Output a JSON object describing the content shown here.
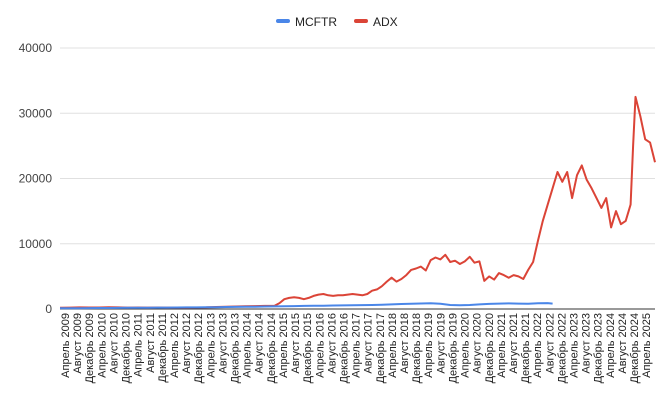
{
  "chart_data": {
    "type": "line",
    "title": "",
    "xlabel": "",
    "ylabel": "",
    "ylim": [
      0,
      40000
    ],
    "yticks": [
      0,
      10000,
      20000,
      30000,
      40000
    ],
    "grid": true,
    "legend_position": "top-center",
    "x_tick_labels": [
      "Апрель 2009",
      "Август 2009",
      "Декабрь 2009",
      "Апрель 2010",
      "Август 2010",
      "Декабрь 2010",
      "Апрель 2011",
      "Август 2011",
      "Декабрь 2011",
      "Апрель 2012",
      "Август 2012",
      "Декабрь 2012",
      "Апрель 2013",
      "Август 2013",
      "Декабрь 2013",
      "Апрель 2014",
      "Август 2014",
      "Декабрь 2014",
      "Апрель 2015",
      "Август 2015",
      "Декабрь 2015",
      "Апрель 2016",
      "Август 2016",
      "Декабрь 2016",
      "Апрель 2017",
      "Август 2017",
      "Декабрь 2017",
      "Апрель 2018",
      "Август 2018",
      "Декабрь 2018",
      "Апрель 2019",
      "Август 2019",
      "Декабрь 2019",
      "Апрель 2020",
      "Август 2020",
      "Декабрь 2020",
      "Апрель 2021",
      "Август 2021",
      "Декабрь 2021",
      "Апрель 2022",
      "Август 2022",
      "Декабрь 2022",
      "Апрель 2023",
      "Август 2023",
      "Декабрь 2023",
      "Апрель 2024",
      "Август 2024",
      "Декабрь 2024",
      "Апрель 2025"
    ],
    "series": [
      {
        "name": "MCFTR",
        "color": "#4a86e8",
        "points": [
          [
            0,
            100
          ],
          [
            4,
            120
          ],
          [
            8,
            130
          ],
          [
            12,
            140
          ],
          [
            16,
            150
          ],
          [
            20,
            160
          ],
          [
            24,
            170
          ],
          [
            28,
            180
          ],
          [
            32,
            190
          ],
          [
            36,
            200
          ],
          [
            40,
            210
          ],
          [
            44,
            220
          ],
          [
            48,
            230
          ],
          [
            52,
            240
          ],
          [
            56,
            250
          ],
          [
            60,
            260
          ],
          [
            64,
            280
          ],
          [
            68,
            300
          ],
          [
            72,
            320
          ],
          [
            76,
            340
          ],
          [
            80,
            360
          ],
          [
            84,
            380
          ],
          [
            88,
            400
          ],
          [
            92,
            420
          ],
          [
            96,
            450
          ],
          [
            100,
            470
          ],
          [
            104,
            490
          ],
          [
            108,
            510
          ],
          [
            112,
            530
          ],
          [
            116,
            550
          ],
          [
            120,
            580
          ],
          [
            124,
            600
          ],
          [
            128,
            620
          ],
          [
            132,
            650
          ],
          [
            136,
            700
          ],
          [
            140,
            760
          ],
          [
            144,
            800
          ],
          [
            148,
            850
          ],
          [
            152,
            870
          ],
          [
            156,
            800
          ],
          [
            160,
            620
          ],
          [
            164,
            580
          ],
          [
            168,
            620
          ],
          [
            172,
            700
          ],
          [
            176,
            780
          ],
          [
            180,
            820
          ],
          [
            184,
            860
          ],
          [
            188,
            830
          ],
          [
            192,
            800
          ],
          [
            196,
            880
          ],
          [
            200,
            900
          ],
          [
            202,
            820
          ]
        ]
      },
      {
        "name": "ADX",
        "color": "#db4437",
        "points": [
          [
            0,
            200
          ],
          [
            4,
            220
          ],
          [
            8,
            240
          ],
          [
            12,
            230
          ],
          [
            16,
            230
          ],
          [
            20,
            260
          ],
          [
            24,
            250
          ],
          [
            28,
            220
          ],
          [
            32,
            230
          ],
          [
            36,
            220
          ],
          [
            40,
            230
          ],
          [
            44,
            210
          ],
          [
            48,
            220
          ],
          [
            52,
            210
          ],
          [
            56,
            230
          ],
          [
            60,
            240
          ],
          [
            64,
            300
          ],
          [
            68,
            350
          ],
          [
            72,
            380
          ],
          [
            76,
            420
          ],
          [
            80,
            450
          ],
          [
            84,
            470
          ],
          [
            88,
            500
          ],
          [
            90,
            900
          ],
          [
            92,
            1500
          ],
          [
            94,
            1700
          ],
          [
            96,
            1800
          ],
          [
            98,
            1700
          ],
          [
            100,
            1500
          ],
          [
            102,
            1700
          ],
          [
            104,
            2000
          ],
          [
            106,
            2200
          ],
          [
            108,
            2300
          ],
          [
            110,
            2100
          ],
          [
            112,
            2000
          ],
          [
            114,
            2100
          ],
          [
            116,
            2100
          ],
          [
            118,
            2200
          ],
          [
            120,
            2300
          ],
          [
            122,
            2200
          ],
          [
            124,
            2100
          ],
          [
            126,
            2300
          ],
          [
            128,
            2800
          ],
          [
            130,
            3000
          ],
          [
            132,
            3500
          ],
          [
            134,
            4200
          ],
          [
            136,
            4800
          ],
          [
            138,
            4200
          ],
          [
            140,
            4600
          ],
          [
            142,
            5200
          ],
          [
            144,
            6000
          ],
          [
            146,
            6200
          ],
          [
            148,
            6500
          ],
          [
            150,
            5900
          ],
          [
            152,
            7500
          ],
          [
            154,
            7900
          ],
          [
            156,
            7600
          ],
          [
            158,
            8300
          ],
          [
            160,
            7200
          ],
          [
            162,
            7400
          ],
          [
            164,
            6900
          ],
          [
            166,
            7300
          ],
          [
            168,
            8000
          ],
          [
            170,
            7100
          ],
          [
            172,
            7300
          ],
          [
            174,
            4300
          ],
          [
            176,
            5000
          ],
          [
            178,
            4500
          ],
          [
            180,
            5500
          ],
          [
            182,
            5200
          ],
          [
            184,
            4800
          ],
          [
            186,
            5200
          ],
          [
            188,
            5000
          ],
          [
            190,
            4600
          ],
          [
            192,
            6000
          ],
          [
            194,
            7200
          ],
          [
            196,
            10500
          ],
          [
            198,
            13500
          ],
          [
            200,
            16000
          ],
          [
            202,
            18500
          ],
          [
            204,
            21000
          ],
          [
            206,
            19500
          ],
          [
            208,
            21000
          ],
          [
            210,
            17000
          ],
          [
            212,
            20500
          ],
          [
            214,
            22000
          ],
          [
            216,
            19800
          ],
          [
            218,
            18500
          ],
          [
            220,
            17000
          ],
          [
            222,
            15500
          ],
          [
            224,
            17000
          ],
          [
            226,
            12500
          ],
          [
            228,
            15000
          ],
          [
            230,
            13000
          ],
          [
            232,
            13500
          ],
          [
            234,
            16000
          ],
          [
            235,
            25000
          ],
          [
            236,
            32500
          ],
          [
            238,
            29500
          ],
          [
            240,
            26000
          ],
          [
            242,
            25500
          ],
          [
            244,
            22500
          ]
        ]
      }
    ],
    "x_range": [
      0,
      244
    ]
  }
}
